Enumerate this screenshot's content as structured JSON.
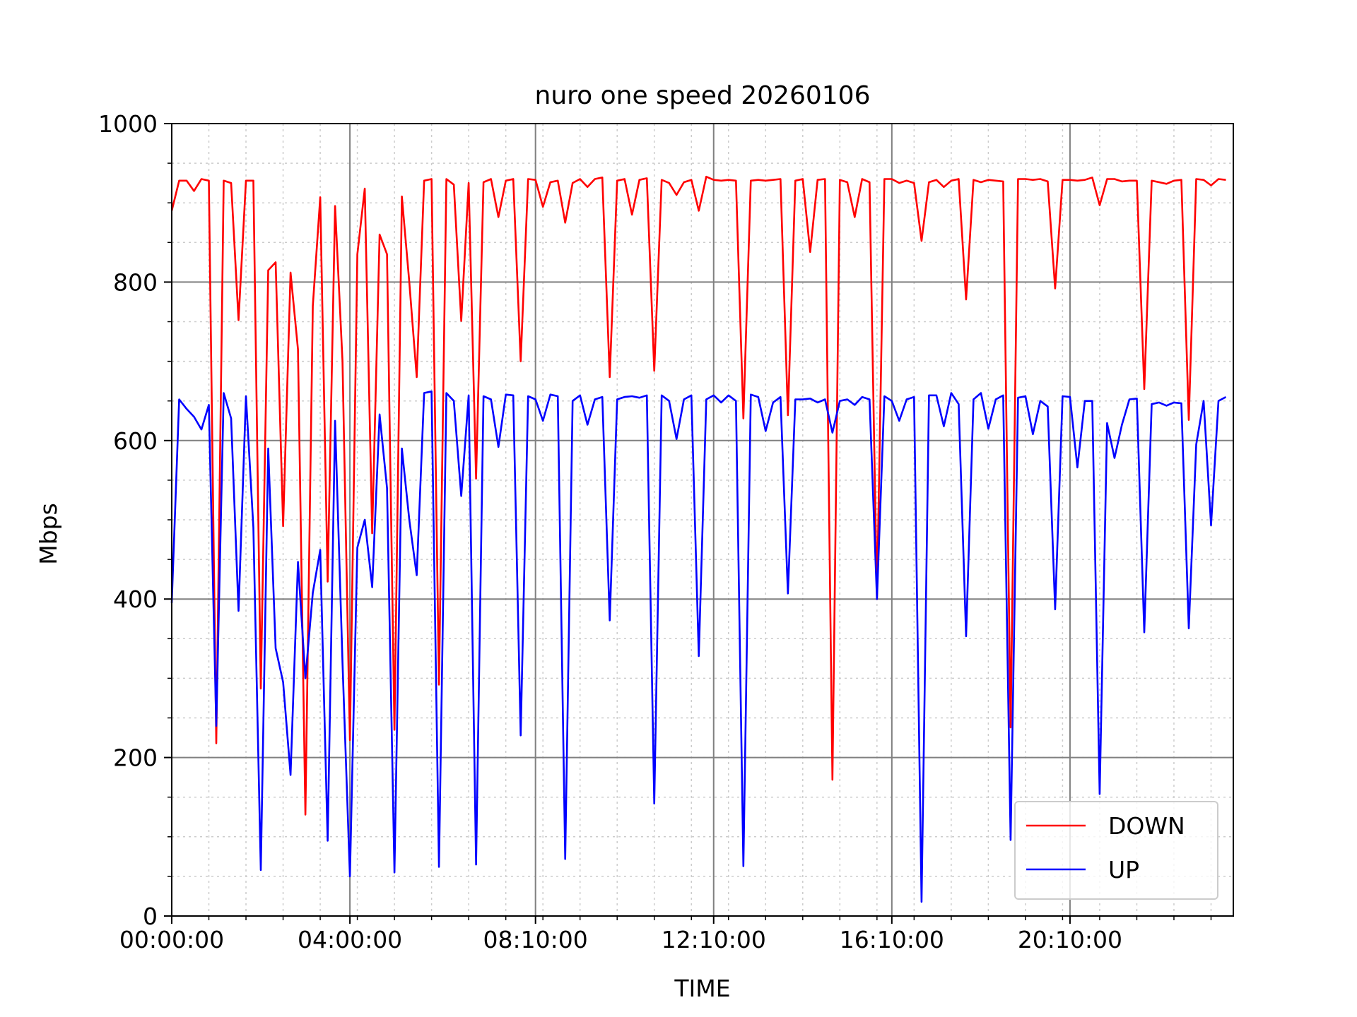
{
  "chart_data": {
    "type": "line",
    "title": "nuro one speed 20260106",
    "xlabel": "TIME",
    "ylabel": "Mbps",
    "ylim": [
      0,
      1000
    ],
    "yticks": [
      0,
      200,
      400,
      600,
      800,
      1000
    ],
    "x_unit": "minutes since 00:00:00",
    "xlim": [
      0,
      1430
    ],
    "x_tick_labels": [
      {
        "minute": 0,
        "label": "00:00:00"
      },
      {
        "minute": 240,
        "label": "04:00:00"
      },
      {
        "minute": 490,
        "label": "08:10:00"
      },
      {
        "minute": 730,
        "label": "12:10:00"
      },
      {
        "minute": 970,
        "label": "16:10:00"
      },
      {
        "minute": 1210,
        "label": "20:10:00"
      }
    ],
    "grid": true,
    "legend_position": "lower-right",
    "series": [
      {
        "name": "DOWN",
        "color": "#ff0000",
        "x": [
          0,
          10,
          20,
          30,
          40,
          50,
          60,
          70,
          80,
          90,
          100,
          110,
          120,
          130,
          140,
          150,
          160,
          170,
          180,
          190,
          200,
          210,
          220,
          230,
          240,
          250,
          260,
          270,
          280,
          290,
          300,
          310,
          320,
          330,
          340,
          350,
          360,
          370,
          380,
          390,
          400,
          410,
          420,
          430,
          440,
          450,
          460,
          470,
          480,
          490,
          500,
          510,
          520,
          530,
          540,
          550,
          560,
          570,
          580,
          590,
          600,
          610,
          620,
          630,
          640,
          650,
          660,
          670,
          680,
          690,
          700,
          710,
          720,
          730,
          740,
          750,
          760,
          770,
          780,
          790,
          800,
          810,
          820,
          830,
          840,
          850,
          860,
          870,
          880,
          890,
          900,
          910,
          920,
          930,
          940,
          950,
          960,
          970,
          980,
          990,
          1000,
          1010,
          1020,
          1030,
          1040,
          1050,
          1060,
          1070,
          1080,
          1090,
          1100,
          1110,
          1120,
          1130,
          1140,
          1150,
          1160,
          1170,
          1180,
          1190,
          1200,
          1210,
          1220,
          1230,
          1240,
          1250,
          1260,
          1270,
          1280,
          1290,
          1300,
          1310,
          1320,
          1330,
          1340,
          1350,
          1360,
          1370,
          1380,
          1390,
          1400,
          1410,
          1420
        ],
        "y": [
          890,
          928,
          928,
          915,
          930,
          928,
          218,
          928,
          925,
          752,
          928,
          928,
          287,
          815,
          825,
          492,
          812,
          715,
          128,
          770,
          907,
          422,
          896,
          700,
          222,
          835,
          918,
          483,
          860,
          835,
          235,
          908,
          800,
          680,
          928,
          930,
          292,
          930,
          923,
          751,
          925,
          552,
          926,
          930,
          882,
          928,
          930,
          700,
          930,
          929,
          895,
          926,
          928,
          875,
          925,
          930,
          920,
          930,
          932,
          680,
          928,
          930,
          885,
          929,
          931,
          688,
          929,
          925,
          910,
          926,
          929,
          890,
          933,
          929,
          928,
          929,
          928,
          628,
          928,
          929,
          928,
          929,
          930,
          632,
          928,
          930,
          838,
          929,
          930,
          172,
          929,
          926,
          882,
          930,
          926,
          400,
          930,
          930,
          925,
          928,
          925,
          852,
          926,
          929,
          920,
          928,
          930,
          778,
          929,
          926,
          929,
          928,
          927,
          238,
          930,
          930,
          929,
          930,
          927,
          792,
          929,
          929,
          928,
          929,
          932,
          897,
          930,
          930,
          927,
          928,
          928,
          665,
          928,
          926,
          924,
          928,
          929,
          626,
          930,
          929,
          922,
          930,
          929
        ]
      },
      {
        "name": "UP",
        "color": "#0000ff",
        "x": [
          0,
          10,
          20,
          30,
          40,
          50,
          60,
          70,
          80,
          90,
          100,
          110,
          120,
          130,
          140,
          150,
          160,
          170,
          180,
          190,
          200,
          210,
          220,
          230,
          240,
          250,
          260,
          270,
          280,
          290,
          300,
          310,
          320,
          330,
          340,
          350,
          360,
          370,
          380,
          390,
          400,
          410,
          420,
          430,
          440,
          450,
          460,
          470,
          480,
          490,
          500,
          510,
          520,
          530,
          540,
          550,
          560,
          570,
          580,
          590,
          600,
          610,
          620,
          630,
          640,
          650,
          660,
          670,
          680,
          690,
          700,
          710,
          720,
          730,
          740,
          750,
          760,
          770,
          780,
          790,
          800,
          810,
          820,
          830,
          840,
          850,
          860,
          870,
          880,
          890,
          900,
          910,
          920,
          930,
          940,
          950,
          960,
          970,
          980,
          990,
          1000,
          1010,
          1020,
          1030,
          1040,
          1050,
          1060,
          1070,
          1080,
          1090,
          1100,
          1110,
          1120,
          1130,
          1140,
          1150,
          1160,
          1170,
          1180,
          1190,
          1200,
          1210,
          1220,
          1230,
          1240,
          1250,
          1260,
          1270,
          1280,
          1290,
          1300,
          1310,
          1320,
          1330,
          1340,
          1350,
          1360,
          1370,
          1380,
          1390,
          1400,
          1410,
          1420
        ],
        "y": [
          395,
          652,
          640,
          630,
          614,
          645,
          240,
          660,
          628,
          385,
          656,
          490,
          58,
          590,
          338,
          295,
          178,
          447,
          300,
          408,
          462,
          95,
          625,
          320,
          50,
          465,
          500,
          415,
          633,
          540,
          55,
          590,
          500,
          430,
          660,
          662,
          62,
          660,
          650,
          530,
          657,
          65,
          656,
          652,
          592,
          658,
          657,
          228,
          656,
          652,
          625,
          658,
          656,
          72,
          650,
          657,
          620,
          652,
          655,
          373,
          652,
          655,
          656,
          654,
          657,
          142,
          657,
          650,
          602,
          652,
          657,
          328,
          652,
          657,
          648,
          657,
          650,
          63,
          658,
          655,
          612,
          648,
          655,
          407,
          652,
          652,
          653,
          648,
          652,
          610,
          650,
          652,
          645,
          655,
          652,
          400,
          656,
          650,
          625,
          652,
          655,
          18,
          657,
          657,
          618,
          660,
          646,
          353,
          652,
          660,
          615,
          652,
          657,
          96,
          654,
          656,
          608,
          650,
          643,
          387,
          656,
          655,
          566,
          650,
          650,
          154,
          622,
          578,
          620,
          652,
          653,
          358,
          646,
          648,
          644,
          648,
          647,
          363,
          595,
          650,
          493,
          650,
          655
        ]
      }
    ]
  }
}
